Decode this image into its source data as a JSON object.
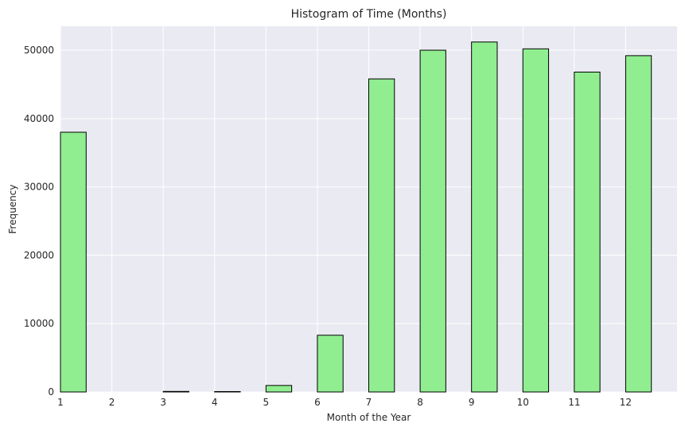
{
  "chart_data": {
    "type": "bar",
    "title": "Histogram of Time (Months)",
    "xlabel": "Month of the Year",
    "ylabel": "Frequency",
    "x_ticks": [
      "1",
      "2",
      "3",
      "4",
      "5",
      "6",
      "7",
      "8",
      "9",
      "10",
      "11",
      "12"
    ],
    "bins": [
      {
        "month": 1,
        "value": 38000
      },
      {
        "month": 3,
        "value": 80
      },
      {
        "month": 4,
        "value": 60
      },
      {
        "month": 5,
        "value": 950
      },
      {
        "month": 6,
        "value": 8300
      },
      {
        "month": 7,
        "value": 45800
      },
      {
        "month": 8,
        "value": 50000
      },
      {
        "month": 9,
        "value": 51200
      },
      {
        "month": 10,
        "value": 50200
      },
      {
        "month": 11,
        "value": 46800
      },
      {
        "month": 12,
        "value": 49200
      }
    ],
    "bin_width": 0.5,
    "xlim": [
      1,
      13
    ],
    "ylim": [
      0,
      53500
    ],
    "y_ticks": [
      0,
      10000,
      20000,
      30000,
      40000,
      50000
    ],
    "grid": true,
    "colors": {
      "bar_fill": "#90ee90",
      "bar_edge": "#000000",
      "plot_background": "#eaeaf2",
      "grid": "#ffffff"
    }
  }
}
